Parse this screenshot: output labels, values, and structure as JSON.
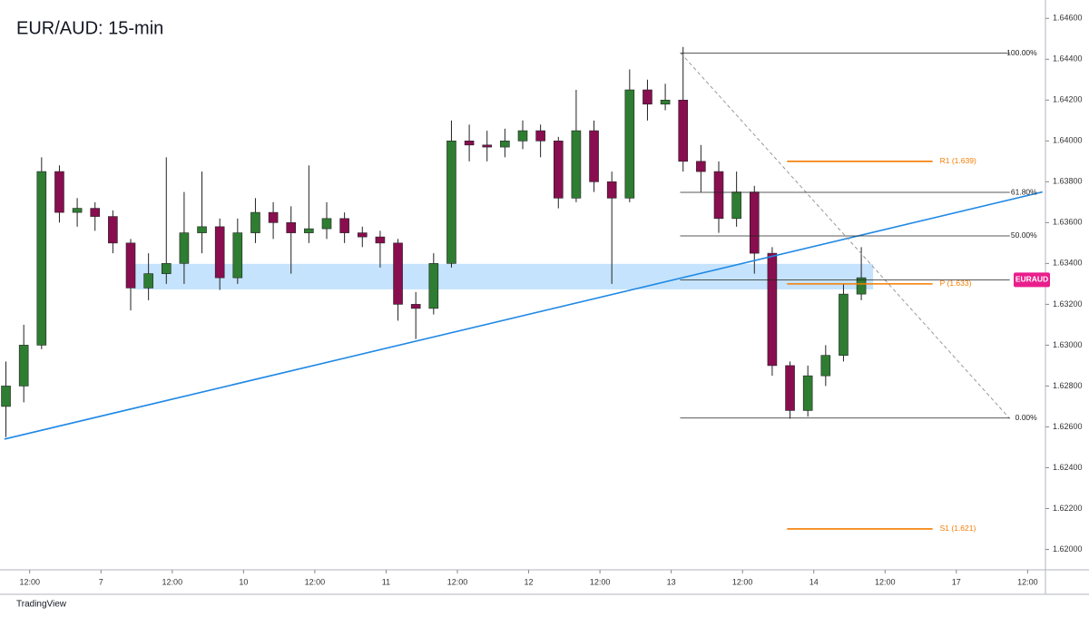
{
  "chart_data": {
    "type": "candlestick",
    "title": "EUR/AUD: 15-min",
    "x": [
      8,
      11,
      14,
      17,
      20,
      23,
      26,
      29,
      32,
      35,
      38,
      41,
      44,
      47,
      50,
      53,
      56,
      59,
      62,
      65,
      68,
      71,
      74,
      77,
      80,
      83,
      86,
      89,
      92,
      95,
      98,
      101,
      104,
      107,
      110,
      113,
      116,
      119,
      122,
      125,
      128,
      131,
      134,
      137,
      140,
      143,
      146,
      149,
      152
    ],
    "open": [
      1.627,
      1.628,
      1.63,
      1.6385,
      1.6365,
      1.6367,
      1.6363,
      1.635,
      1.6328,
      1.6335,
      1.634,
      1.6355,
      1.6358,
      1.6333,
      1.6355,
      1.6365,
      1.636,
      1.6355,
      1.6357,
      1.6362,
      1.6355,
      1.6353,
      1.635,
      1.632,
      1.6318,
      1.634,
      1.64,
      1.6398,
      1.6397,
      1.64,
      1.6405,
      1.64,
      1.6372,
      1.6405,
      1.638,
      1.6372,
      1.6425,
      1.6418,
      1.642,
      1.639,
      1.6385,
      1.6362,
      1.6375,
      1.6345,
      1.629,
      1.6268,
      1.6285,
      1.6295,
      1.6325
    ],
    "high": [
      1.6292,
      1.631,
      1.6392,
      1.6388,
      1.6372,
      1.637,
      1.6366,
      1.6352,
      1.6345,
      1.6392,
      1.6375,
      1.6385,
      1.6362,
      1.6362,
      1.6372,
      1.637,
      1.6368,
      1.6388,
      1.637,
      1.6365,
      1.6358,
      1.6356,
      1.6352,
      1.6326,
      1.6345,
      1.641,
      1.6408,
      1.6405,
      1.6406,
      1.641,
      1.6408,
      1.6402,
      1.6425,
      1.641,
      1.6385,
      1.6435,
      1.643,
      1.6428,
      1.6446,
      1.6398,
      1.639,
      1.6385,
      1.6378,
      1.6348,
      1.6292,
      1.629,
      1.63,
      1.633,
      1.6348
    ],
    "low": [
      1.6255,
      1.6272,
      1.6298,
      1.636,
      1.6358,
      1.6356,
      1.6345,
      1.6317,
      1.6322,
      1.633,
      1.633,
      1.6345,
      1.6327,
      1.633,
      1.635,
      1.6352,
      1.6335,
      1.635,
      1.6352,
      1.635,
      1.6348,
      1.6338,
      1.6312,
      1.6303,
      1.6315,
      1.6338,
      1.639,
      1.639,
      1.6392,
      1.6396,
      1.6392,
      1.6367,
      1.637,
      1.6375,
      1.633,
      1.637,
      1.641,
      1.6415,
      1.6385,
      1.6375,
      1.6355,
      1.6358,
      1.6335,
      1.6285,
      1.6264,
      1.6265,
      1.628,
      1.6292,
      1.6322
    ],
    "close": [
      1.628,
      1.63,
      1.6385,
      1.6365,
      1.6367,
      1.6363,
      1.635,
      1.6328,
      1.6335,
      1.634,
      1.6355,
      1.6358,
      1.6333,
      1.6355,
      1.6365,
      1.636,
      1.6355,
      1.6357,
      1.6362,
      1.6355,
      1.6353,
      1.635,
      1.632,
      1.6318,
      1.634,
      1.64,
      1.6398,
      1.6397,
      1.64,
      1.6405,
      1.64,
      1.6372,
      1.6405,
      1.638,
      1.6372,
      1.6425,
      1.6418,
      1.642,
      1.639,
      1.6385,
      1.6362,
      1.6375,
      1.6345,
      1.629,
      1.6268,
      1.6285,
      1.6295,
      1.6325,
      1.6333
    ],
    "up_color": "#2e7d32",
    "down_color": "#880e4f",
    "xlim": [
      7,
      183
    ],
    "ylim": [
      1.619,
      1.6469
    ],
    "xticks": [
      {
        "value": 12,
        "label": "12:00"
      },
      {
        "value": 24,
        "label": "7"
      },
      {
        "value": 36,
        "label": "12:00"
      },
      {
        "value": 48,
        "label": "10"
      },
      {
        "value": 60,
        "label": "12:00"
      },
      {
        "value": 72,
        "label": "11"
      },
      {
        "value": 84,
        "label": "12:00"
      },
      {
        "value": 96,
        "label": "12"
      },
      {
        "value": 108,
        "label": "12:00"
      },
      {
        "value": 120,
        "label": "13"
      },
      {
        "value": 132,
        "label": "12:00"
      },
      {
        "value": 144,
        "label": "14"
      },
      {
        "value": 156,
        "label": "12:00"
      },
      {
        "value": 168,
        "label": "17"
      },
      {
        "value": 180,
        "label": "12:00"
      }
    ],
    "yticks": [
      {
        "value": 1.62,
        "label": "1.62000"
      },
      {
        "value": 1.622,
        "label": "1.62200"
      },
      {
        "value": 1.624,
        "label": "1.62400"
      },
      {
        "value": 1.626,
        "label": "1.62600"
      },
      {
        "value": 1.628,
        "label": "1.62800"
      },
      {
        "value": 1.63,
        "label": "1.63000"
      },
      {
        "value": 1.632,
        "label": "1.63200"
      },
      {
        "value": 1.634,
        "label": "1.63400"
      },
      {
        "value": 1.636,
        "label": "1.63600"
      },
      {
        "value": 1.638,
        "label": "1.63800"
      },
      {
        "value": 1.64,
        "label": "1.64000"
      },
      {
        "value": 1.642,
        "label": "1.64200"
      },
      {
        "value": 1.644,
        "label": "1.64400"
      },
      {
        "value": 1.646,
        "label": "1.64600"
      }
    ],
    "zone": {
      "x": [
        29.5,
        154
      ],
      "y": [
        1.63273,
        1.63398
      ],
      "color": "#bbdefb"
    },
    "trendline": {
      "x": [
        7.75,
        182.5
      ],
      "y": [
        1.6254,
        1.6375
      ],
      "color": "#1e88e5"
    },
    "fib_diagonal": {
      "x": [
        121.6,
        177
      ],
      "y": [
        1.6443,
        1.6264
      ],
      "color": "#999999"
    },
    "fib_x": [
      121.5,
      177
    ],
    "fib_levels": [
      {
        "value": 1.6443,
        "label": "100.00%"
      },
      {
        "value": 1.63748,
        "label": "61.80%"
      },
      {
        "value": 1.63535,
        "label": "50.00%"
      },
      {
        "value": 1.62643,
        "label": "0.00%"
      }
    ],
    "fib_color": "#222222",
    "pivot_x": [
      139.5,
      164
    ],
    "pivots": [
      {
        "value": 1.639,
        "label": "R1 (1.639)"
      },
      {
        "value": 1.633,
        "label": "P (1.633)"
      },
      {
        "value": 1.621,
        "label": "S1 (1.621)"
      }
    ],
    "pivot_color": "#f57c00",
    "last_price": {
      "value": 1.6332,
      "x": [
        121.5,
        177
      ],
      "label": "EURAUD",
      "color": "#e91e8c"
    }
  },
  "branding": "TradingView"
}
